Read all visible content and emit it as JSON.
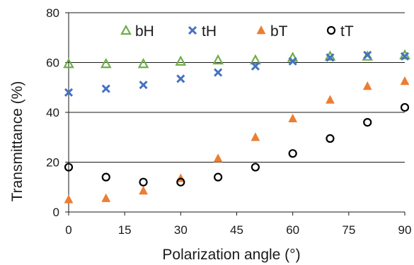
{
  "chart_data": {
    "type": "scatter",
    "title": "",
    "xlabel": "Polarization angle (°)",
    "ylabel": "Transmittance (%)",
    "xlim": [
      0,
      90
    ],
    "ylim": [
      0,
      80
    ],
    "xticks": [
      "0",
      "15",
      "30",
      "45",
      "60",
      "75",
      "90"
    ],
    "yticks": [
      "0",
      "20",
      "40",
      "60",
      "80"
    ],
    "grid": "horizontal",
    "legend_position": "top",
    "x": [
      0,
      10,
      20,
      30,
      40,
      50,
      60,
      70,
      80,
      90
    ],
    "series": [
      {
        "name": "bH",
        "marker": "open-triangle",
        "color": "#70ad47",
        "values": [
          59.5,
          59.5,
          59.5,
          60.5,
          61,
          61,
          62,
          62.5,
          62.5,
          63
        ]
      },
      {
        "name": "tH",
        "marker": "x",
        "color": "#4472c4",
        "values": [
          48,
          49.5,
          51,
          53.5,
          56,
          58.5,
          60.5,
          62,
          63,
          62.5
        ]
      },
      {
        "name": "bT",
        "marker": "filled-triangle",
        "color": "#ed7d31",
        "values": [
          5,
          5.5,
          8.5,
          13.5,
          21.5,
          30,
          37.5,
          45,
          50.5,
          52.5
        ]
      },
      {
        "name": "tT",
        "marker": "open-circle",
        "color": "#000000",
        "values": [
          18,
          14,
          12,
          12,
          14,
          18,
          23.5,
          29.5,
          36,
          42
        ]
      }
    ]
  }
}
